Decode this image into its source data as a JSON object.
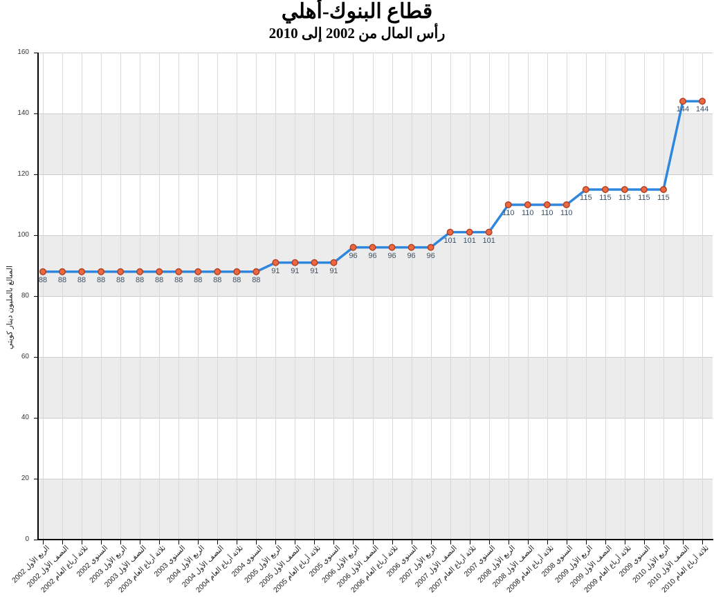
{
  "chart": {
    "title": "قطاع البنوك-أهلي",
    "subtitle": "رأس المال من 2002 إلى 2010",
    "ylabel": "المبالغ بالمليون دينار كويتي"
  },
  "chart_data": {
    "type": "line",
    "title": "قطاع البنوك-أهلي",
    "subtitle": "رأس المال من 2002 إلى 2010",
    "xlabel": "",
    "ylabel": "المبالغ بالمليون دينار كويتي",
    "ylim": [
      0,
      160
    ],
    "yticks": [
      0,
      20,
      40,
      60,
      80,
      100,
      120,
      140,
      160
    ],
    "grid": true,
    "legend": false,
    "data_labels": true,
    "shaded_bands": [
      [
        0,
        20
      ],
      [
        40,
        60
      ],
      [
        80,
        100
      ],
      [
        120,
        140
      ]
    ],
    "categories": [
      "الربع الأول 2002",
      "النصف الأول 2002",
      "ثلاثة أرباع العام 2002",
      "السنوي 2002",
      "الربع الأول 2003",
      "النصف الأول 2003",
      "ثلاثة أرباع العام 2003",
      "السنوي 2003",
      "الربع الأول 2004",
      "النصف الأول 2004",
      "ثلاثة أرباع العام 2004",
      "السنوي 2004",
      "الربع الأول 2005",
      "النصف الأول 2005",
      "ثلاثة أرباع العام 2005",
      "السنوي 2005",
      "الربع الأول 2006",
      "النصف الأول 2006",
      "ثلاثة أرباع العام 2006",
      "السنوي 2006",
      "الربع الأول 2007",
      "النصف الأول 2007",
      "ثلاثة أرباع العام 2007",
      "السنوي 2007",
      "الربع الأول 2008",
      "النصف الأول 2008",
      "ثلاثة أرباع العام 2008",
      "السنوي 2008",
      "الربع الأول 2009",
      "النصف الأول 2009",
      "ثلاثة أرباع العام 2009",
      "السنوي 2009",
      "الربع الأول 2010",
      "النصف الأول 2010",
      "ثلاثة أرباع العام 2010"
    ],
    "series": [
      {
        "name": "رأس المال",
        "values": [
          88,
          88,
          88,
          88,
          88,
          88,
          88,
          88,
          88,
          88,
          88,
          88,
          91,
          91,
          91,
          91,
          96,
          96,
          96,
          96,
          96,
          101,
          101,
          101,
          110,
          110,
          110,
          110,
          115,
          115,
          115,
          115,
          115,
          144,
          144
        ]
      }
    ]
  },
  "colors": {
    "line": "#2E86DE",
    "marker_fill": "#EB6841",
    "marker_stroke": "#A93E22",
    "data_label": "#3D5166",
    "band": "#ECECEC",
    "vgrid": "#D9D9D9",
    "hgrid": "#CCCCCC",
    "axis": "#000000"
  }
}
